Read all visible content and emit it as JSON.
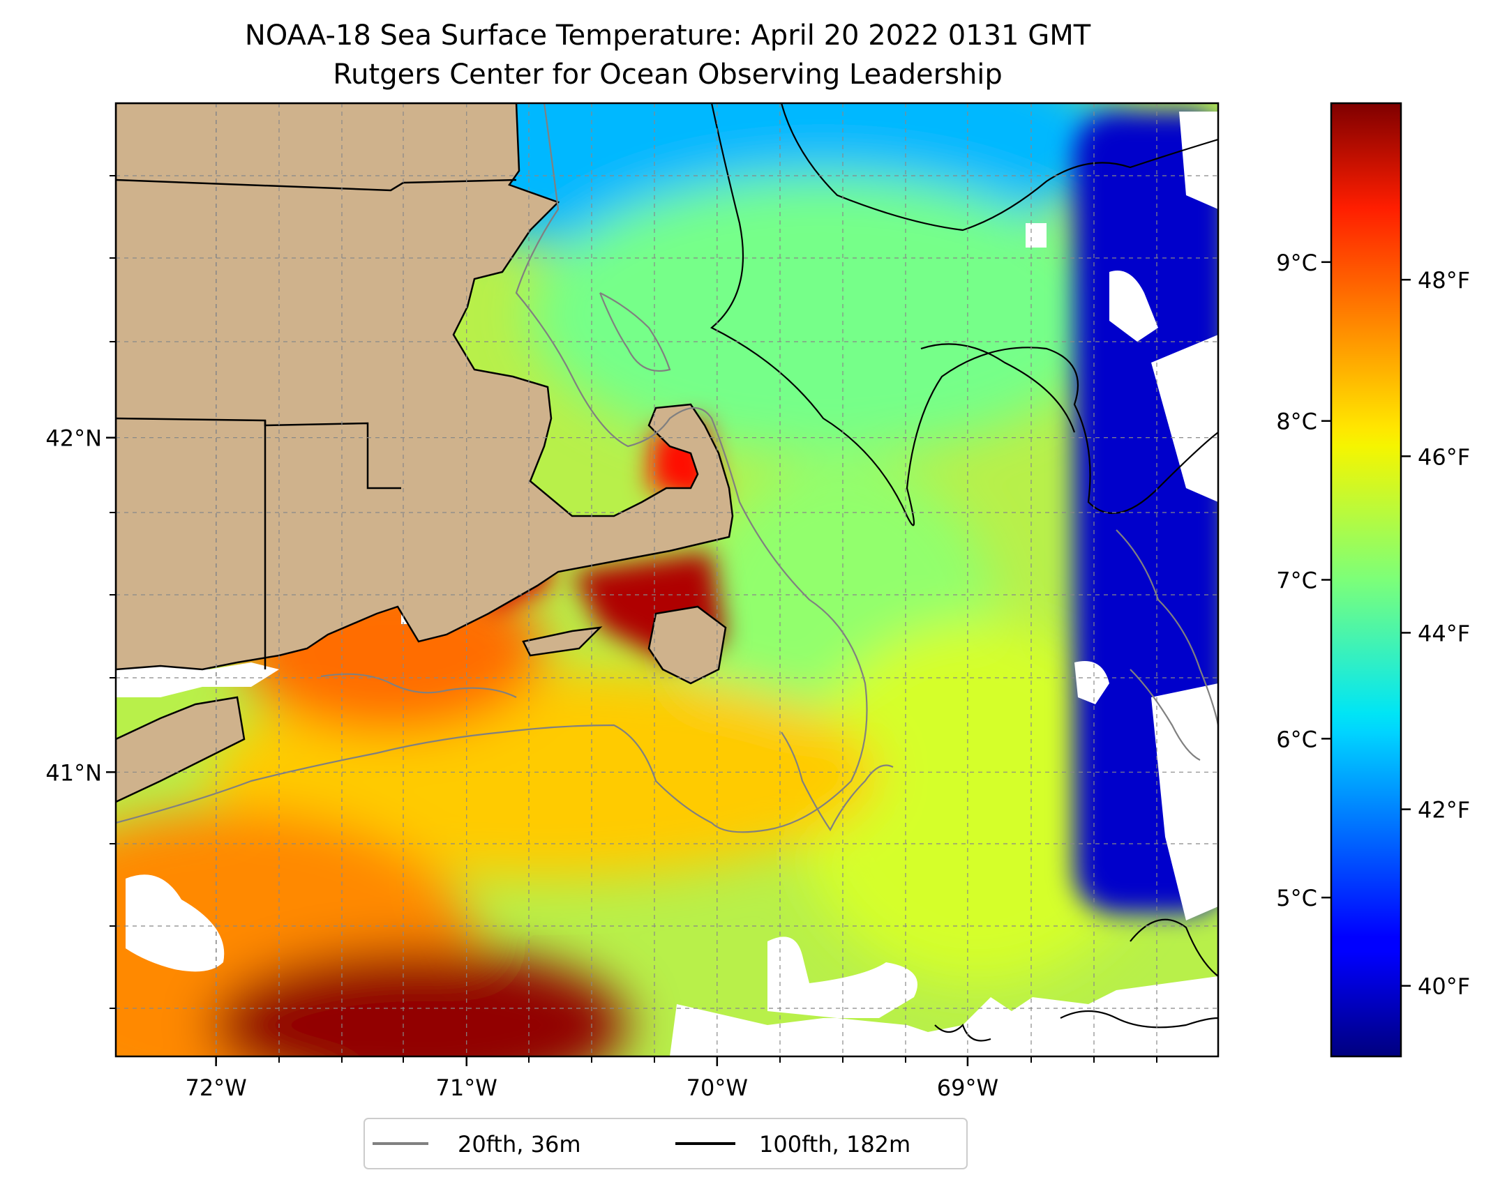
{
  "title": "NOAA-18 Sea Surface Temperature: April 20 2022 0131 GMT",
  "subtitle": "Rutgers Center for Ocean Observing Leadership",
  "map": {
    "lon_range": [
      -72.4,
      -68.0
    ],
    "lat_range": [
      40.15,
      43.0
    ],
    "lon_ticks": [
      {
        "value": -72,
        "label": "72°W"
      },
      {
        "value": -71,
        "label": "71°W"
      },
      {
        "value": -70,
        "label": "70°W"
      },
      {
        "value": -69,
        "label": "69°W"
      }
    ],
    "lat_ticks": [
      {
        "value": 42,
        "label": "42°N"
      },
      {
        "value": 41,
        "label": "41°N"
      }
    ],
    "grid": "dashed",
    "colors": {
      "land": "#cfb28c",
      "coastline": "#000000",
      "no_data": "#ffffff"
    },
    "sst_regions": [
      {
        "name": "gulf-of-maine-north",
        "temp_f": 42.5
      },
      {
        "name": "gulf-of-maine-center",
        "temp_f": 44.5
      },
      {
        "name": "georges-bank-west",
        "temp_f": 45.5
      },
      {
        "name": "eastern-cold-band",
        "temp_f": 40
      },
      {
        "name": "cape-cod-bay",
        "temp_f": 48.5
      },
      {
        "name": "nantucket-sound",
        "temp_f": 49.5
      },
      {
        "name": "buzzards-bay",
        "temp_f": 49
      },
      {
        "name": "narragansett",
        "temp_f": 47.5
      },
      {
        "name": "south-shelf",
        "temp_f": 46.5
      },
      {
        "name": "south-warm-core",
        "temp_f": 49.8
      },
      {
        "name": "southwest-shelf",
        "temp_f": 47.2
      },
      {
        "name": "mid-shelf-cool",
        "temp_f": 44.8
      }
    ]
  },
  "colorbar": {
    "range_c": [
      4.0,
      10.0
    ],
    "colormap": "jet",
    "celsius_ticks": [
      {
        "value": 5,
        "label": "5°C"
      },
      {
        "value": 6,
        "label": "6°C"
      },
      {
        "value": 7,
        "label": "7°C"
      },
      {
        "value": 8,
        "label": "8°C"
      },
      {
        "value": 9,
        "label": "9°C"
      }
    ],
    "fahrenheit_ticks": [
      {
        "value": 40,
        "label": "40°F"
      },
      {
        "value": 42,
        "label": "42°F"
      },
      {
        "value": 44,
        "label": "44°F"
      },
      {
        "value": 46,
        "label": "46°F"
      },
      {
        "value": 48,
        "label": "48°F"
      }
    ]
  },
  "legend": {
    "position": "bottom-center",
    "entries": [
      {
        "label": "20fth, 36m",
        "color": "#808080"
      },
      {
        "label": "100fth, 182m",
        "color": "#000000"
      }
    ]
  }
}
